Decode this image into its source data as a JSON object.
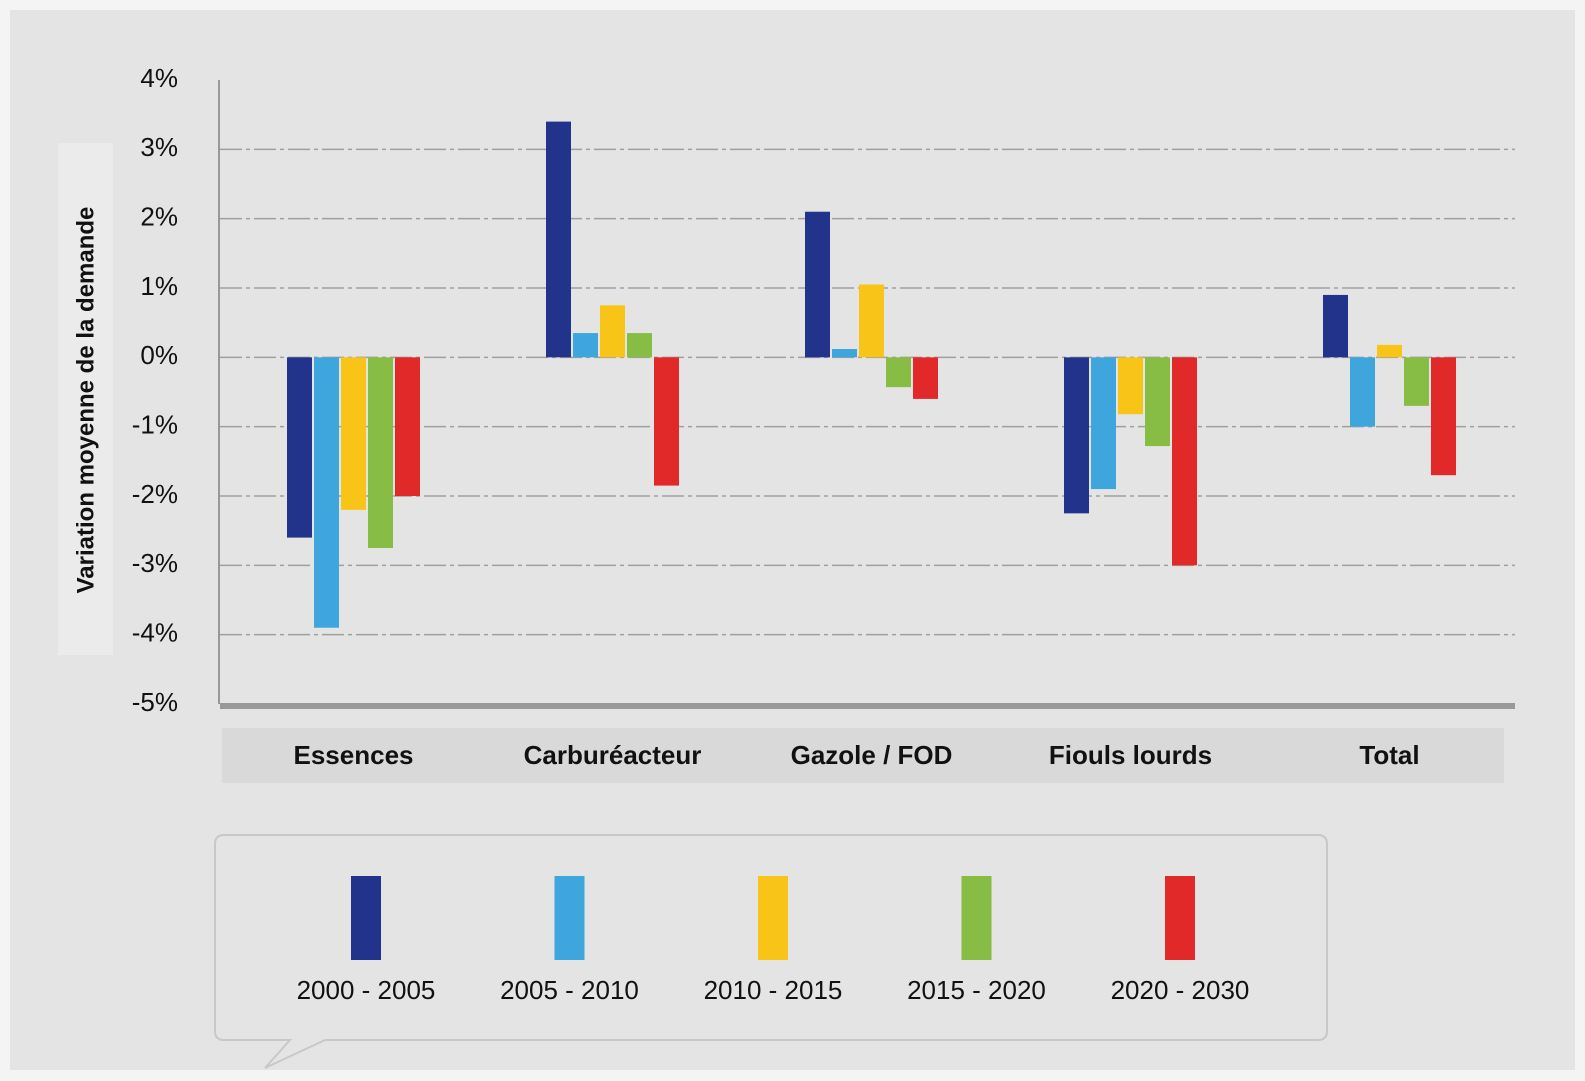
{
  "chart_data": {
    "type": "bar",
    "y_label": "Variation moyenne de la demande",
    "categories": [
      "Essences",
      "Carburéacteur",
      "Gazole / FOD",
      "Fiouls lourds",
      "Total"
    ],
    "series": [
      {
        "name": "2000 - 2005",
        "color": "#21338a",
        "values": [
          -2.6,
          3.4,
          2.1,
          -2.25,
          0.9
        ]
      },
      {
        "name": "2005 - 2010",
        "color": "#3ea6dd",
        "values": [
          -3.9,
          0.35,
          0.12,
          -1.9,
          -1.0
        ]
      },
      {
        "name": "2010 - 2015",
        "color": "#f7c417",
        "values": [
          -2.2,
          0.75,
          1.05,
          -0.82,
          0.18
        ]
      },
      {
        "name": "2015 - 2020",
        "color": "#88bd45",
        "values": [
          -2.75,
          0.35,
          -0.43,
          -1.28,
          -0.7
        ]
      },
      {
        "name": "2020 - 2030",
        "color": "#e2292a",
        "values": [
          -2.0,
          -1.85,
          -0.6,
          -3.0,
          -1.7
        ]
      }
    ],
    "ylim": [
      -5,
      4
    ],
    "yticks": [
      {
        "value": 4,
        "label": "4%"
      },
      {
        "value": 3,
        "label": "3%"
      },
      {
        "value": 2,
        "label": "2%"
      },
      {
        "value": 1,
        "label": "1%"
      },
      {
        "value": 0,
        "label": "0%"
      },
      {
        "value": -1,
        "label": "-1%"
      },
      {
        "value": -2,
        "label": "-2%"
      },
      {
        "value": -3,
        "label": "-3%"
      },
      {
        "value": -4,
        "label": "-4%"
      },
      {
        "value": -5,
        "label": "-5%"
      }
    ],
    "grid": true,
    "legend": "bottom"
  }
}
